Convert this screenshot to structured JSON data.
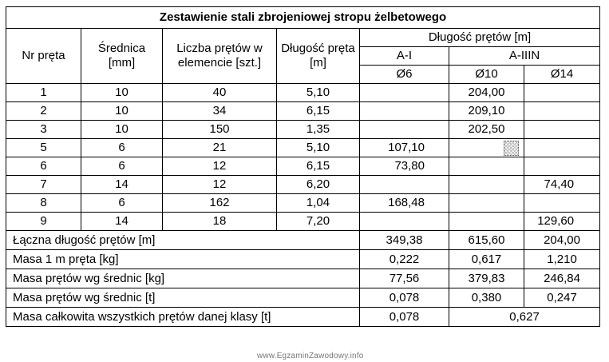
{
  "title": "Zestawienie stali zbrojeniowej stropu żelbetowego",
  "headers": {
    "nr": "Nr pręta",
    "srednica": "Średnica [mm]",
    "liczba": "Liczba prętów w elemencie [szt.]",
    "dlugosc": "Długość pręta [m]",
    "dlugosc_pretow": "Długość prętów [m]",
    "class_a1": "A-I",
    "class_a3": "A-IIIN",
    "phi6": "Ø6",
    "phi10": "Ø10",
    "phi14": "Ø14"
  },
  "rows": [
    {
      "nr": "1",
      "srednica": "10",
      "liczba": "40",
      "dlugosc": "5,10",
      "d6": "",
      "d10": "204,00",
      "d14": ""
    },
    {
      "nr": "2",
      "srednica": "10",
      "liczba": "34",
      "dlugosc": "6,15",
      "d6": "",
      "d10": "209,10",
      "d14": ""
    },
    {
      "nr": "3",
      "srednica": "10",
      "liczba": "150",
      "dlugosc": "1,35",
      "d6": "",
      "d10": "202,50",
      "d14": ""
    },
    {
      "nr": "5",
      "srednica": "6",
      "liczba": "21",
      "dlugosc": "5,10",
      "d6": "107,10",
      "d10": "",
      "d14": ""
    },
    {
      "nr": "6",
      "srednica": "6",
      "liczba": "12",
      "dlugosc": "6,15",
      "d6": "73,80",
      "d10": "",
      "d14": ""
    },
    {
      "nr": "7",
      "srednica": "14",
      "liczba": "12",
      "dlugosc": "6,20",
      "d6": "",
      "d10": "",
      "d14": "74,40"
    },
    {
      "nr": "8",
      "srednica": "6",
      "liczba": "162",
      "dlugosc": "1,04",
      "d6": "168,48",
      "d10": "",
      "d14": ""
    },
    {
      "nr": "9",
      "srednica": "14",
      "liczba": "18",
      "dlugosc": "7,20",
      "d6": "",
      "d10": "",
      "d14": "129,60"
    }
  ],
  "summary": [
    {
      "label": "Łączna długość prętów [m]",
      "d6": "349,38",
      "d10": "615,60",
      "d14": "204,00"
    },
    {
      "label": "Masa 1 m pręta [kg]",
      "d6": "0,222",
      "d10": "0,617",
      "d14": "1,210"
    },
    {
      "label": "Masa prętów wg średnic [kg]",
      "d6": "77,56",
      "d10": "379,83",
      "d14": "246,84"
    },
    {
      "label": "Masa prętów wg średnic [t]",
      "d6": "0,078",
      "d10": "0,380",
      "d14": "0,247"
    }
  ],
  "total": {
    "label": "Masa całkowita wszystkich prętów danej klasy [t]",
    "a1": "0,078",
    "a3": "0,627"
  },
  "watermark": "www.EgzaminZawodowy.info"
}
